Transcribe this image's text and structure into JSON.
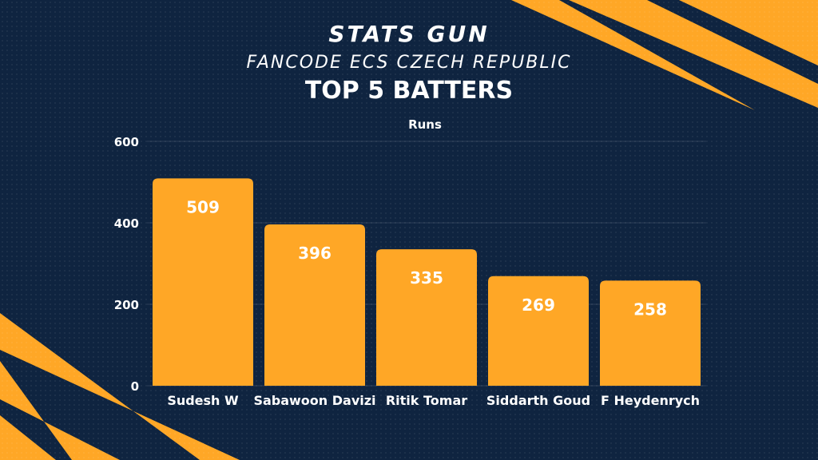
{
  "header": {
    "brand_title": "STATS GUN",
    "brand_subtitle": "FANCODE ECS CZECH REPUBLIC"
  },
  "colors": {
    "background": "#0f2440",
    "bar": "#ffa726",
    "accent": "#ffa726",
    "label": "#ffffff"
  },
  "chart_data": {
    "type": "bar",
    "title": "TOP 5 BATTERS",
    "ylabel": "Runs",
    "xlabel": "",
    "categories": [
      "Sudesh W",
      "Sabawoon Davizi",
      "Ritik Tomar",
      "Siddarth Goud",
      "F Heydenrych"
    ],
    "values": [
      509,
      396,
      335,
      269,
      258
    ],
    "ylim": [
      0,
      600
    ],
    "yticks": [
      0,
      200,
      400,
      600
    ],
    "grid": true,
    "data_labels": true
  }
}
